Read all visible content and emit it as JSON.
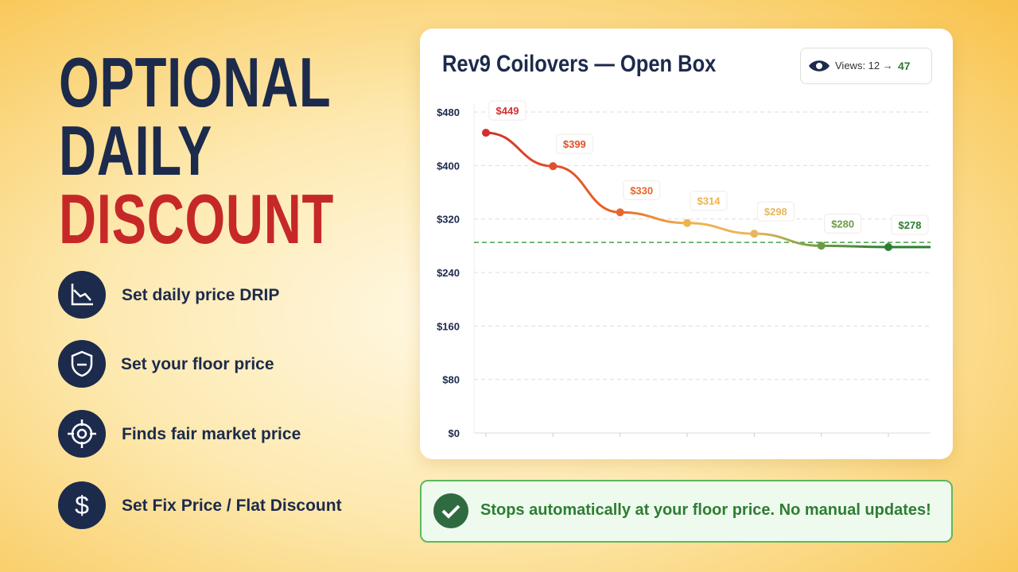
{
  "headline": {
    "line1": "OPTIONAL",
    "line2": "DAILY",
    "line3": "DISCOUNT"
  },
  "features": [
    "Set daily price DRIP",
    "Set your floor price",
    "Finds fair market price",
    "Set Fix Price / Flat Discount"
  ],
  "views": {
    "label": "Views: 12 →",
    "value": "47"
  },
  "banner": "Stops automatically at your floor price. No manual updates!",
  "chart_data": {
    "type": "line",
    "title": "Rev9 Coilovers — Open Box",
    "categories": [
      null,
      null,
      null,
      null,
      null,
      null,
      null
    ],
    "series": [
      {
        "values": [
          449,
          399,
          330,
          314,
          298,
          280,
          278
        ],
        "value_labels": [
          "$449",
          "$399",
          "$330",
          "$314",
          "$298",
          "$280",
          "$278"
        ],
        "colors": [
          "#d32f2f",
          "#e0502a",
          "#e8662a",
          "#f0b24e",
          "#e9b65e",
          "#6f9a45",
          "#2e7d32"
        ]
      }
    ],
    "ylim": [
      0,
      480
    ],
    "yticks": [
      {
        "value": 0,
        "label": "$0"
      },
      {
        "value": 80,
        "label": "$80"
      },
      {
        "value": 160,
        "label": "$160"
      },
      {
        "value": 240,
        "label": "$240"
      },
      {
        "value": 320,
        "label": "$320"
      },
      {
        "value": 400,
        "label": "$400"
      },
      {
        "value": 480,
        "label": "$480"
      }
    ],
    "reference_line": {
      "value": 285,
      "color": "#43a047"
    },
    "grid": true
  }
}
